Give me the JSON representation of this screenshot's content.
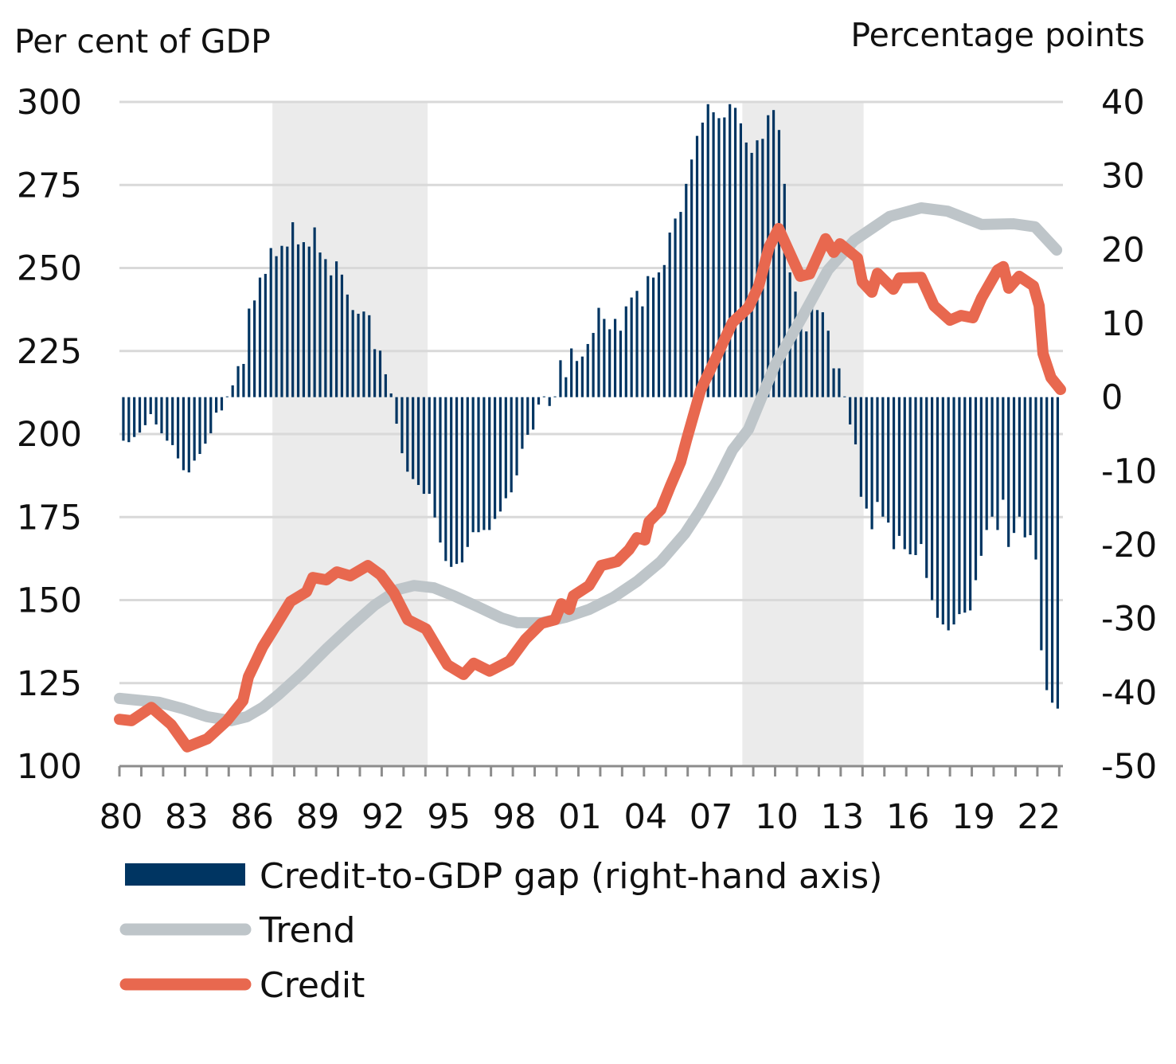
{
  "chart_data": {
    "type": "bar+line",
    "left_axis_label": "Per cent of GDP",
    "right_axis_label": "Percentage points",
    "left_ylim": [
      100,
      300
    ],
    "left_ticks": [
      "300",
      "275",
      "250",
      "225",
      "200",
      "175",
      "150",
      "125",
      "100"
    ],
    "right_ylim": [
      -50,
      40
    ],
    "right_ticks": [
      "40",
      "30",
      "20",
      "10",
      "0",
      "-10",
      "-20",
      "-30",
      "-40",
      "-50"
    ],
    "x_range": [
      1980,
      2023.2
    ],
    "x_tick_years": [
      1980,
      1983,
      1986,
      1989,
      1992,
      1995,
      1998,
      2001,
      2004,
      2007,
      2010,
      2013,
      2016,
      2019,
      2022
    ],
    "x_tick_labels": [
      "80",
      "83",
      "86",
      "89",
      "92",
      "95",
      "98",
      "01",
      "04",
      "07",
      "10",
      "13",
      "16",
      "19",
      "22"
    ],
    "grid": true,
    "shaded_periods": [
      [
        1987.0,
        1994.1
      ],
      [
        2008.5,
        2014.05
      ]
    ],
    "legend": {
      "position": "bottom",
      "items": [
        {
          "label": "Credit-to-GDP gap (right-hand axis)",
          "type": "bar",
          "color": "#003562"
        },
        {
          "label": "Trend",
          "type": "line",
          "color": "#BEC5C9"
        },
        {
          "label": "Credit",
          "type": "line",
          "color": "#E8684F"
        }
      ]
    },
    "series": [
      {
        "name": "Credit-to-GDP gap (right-hand axis)",
        "axis": "right",
        "frequency": "quarterly",
        "start": "1980Q1",
        "values": [
          -5.9,
          -6.1,
          -5.4,
          -4.8,
          -3.8,
          -2.3,
          -3.7,
          -4.9,
          -5.9,
          -6.5,
          -8.3,
          -9.9,
          -10.2,
          -8.6,
          -7.7,
          -6.3,
          -4.9,
          -2.1,
          -1.8,
          0.1,
          1.6,
          4.2,
          4.5,
          12.0,
          13.1,
          16.2,
          16.7,
          20.2,
          19.1,
          20.5,
          20.4,
          23.7,
          20.7,
          21.0,
          20.4,
          23.0,
          19.6,
          18.7,
          16.5,
          18.4,
          16.6,
          13.9,
          11.8,
          11.3,
          11.6,
          11.1,
          6.5,
          6.3,
          3.1,
          0.5,
          -3.6,
          -7.6,
          -10.1,
          -11.1,
          -11.9,
          -13.1,
          -13.1,
          -16.3,
          -19.7,
          -22.2,
          -23.0,
          -22.6,
          -22.4,
          -20.3,
          -18.3,
          -18.3,
          -18.0,
          -18.0,
          -16.5,
          -15.5,
          -13.7,
          -12.9,
          -10.6,
          -7.0,
          -5.1,
          -4.4,
          -1.0,
          0.1,
          -1.2,
          0.1,
          5.0,
          2.7,
          6.6,
          4.9,
          5.5,
          7.2,
          8.7,
          12.1,
          10.6,
          9.2,
          10.6,
          9.0,
          12.3,
          13.5,
          14.4,
          12.3,
          16.4,
          16.2,
          16.9,
          17.9,
          22.3,
          24.2,
          25.1,
          28.9,
          32.2,
          35.4,
          37.2,
          39.7,
          38.6,
          37.8,
          37.9,
          39.7,
          39.2,
          37.1,
          34.5,
          33.1,
          34.8,
          35.0,
          38.2,
          38.9,
          36.2,
          28.9,
          16.9,
          14.3,
          9.9,
          8.9,
          12.0,
          11.8,
          11.5,
          9.0,
          3.9,
          3.9,
          0.1,
          -3.7,
          -6.4,
          -13.5,
          -15.1,
          -17.9,
          -14.2,
          -16.2,
          -17.0,
          -20.6,
          -18.8,
          -20.6,
          -21.3,
          -21.4,
          -19.9,
          -24.5,
          -27.5,
          -29.9,
          -30.8,
          -31.6,
          -30.8,
          -29.4,
          -29.2,
          -28.9,
          -24.8,
          -21.5,
          -18.0,
          -16.2,
          -18.0,
          -13.9,
          -20.3,
          -18.4,
          -16.2,
          -19.0,
          -18.7,
          -22.0,
          -34.3,
          -39.7,
          -41.4,
          -42.2
        ],
        "color": "#003562"
      },
      {
        "name": "Trend",
        "axis": "left",
        "x": [
          1980.0,
          1981.82,
          1982.91,
          1984.01,
          1985.1,
          1985.83,
          1986.56,
          1987.29,
          1988.38,
          1989.47,
          1990.56,
          1991.66,
          1992.75,
          1993.48,
          1994.39,
          1995.3,
          1996.39,
          1997.49,
          1998.21,
          1999.31,
          2000.4,
          2001.49,
          2002.59,
          2003.68,
          2004.77,
          2005.87,
          2006.59,
          2007.32,
          2008.05,
          2008.78,
          2009.98,
          2011.22,
          2012.42,
          2013.62,
          2015.23,
          2016.68,
          2017.89,
          2019.45,
          2020.91,
          2021.89,
          2022.88
        ],
        "y": [
          120.4,
          119.2,
          117.3,
          114.9,
          113.7,
          114.9,
          117.7,
          121.6,
          128.1,
          135.3,
          142.0,
          148.4,
          153.2,
          154.4,
          153.7,
          151.3,
          148.0,
          144.6,
          143.2,
          143.2,
          144.8,
          147.2,
          150.8,
          155.6,
          161.6,
          170.0,
          177.2,
          185.6,
          195.2,
          201.4,
          220.6,
          235.0,
          249.4,
          258.3,
          265.5,
          268.1,
          267.1,
          263.1,
          263.3,
          262.4,
          255.4
        ],
        "color": "#BEC5C9"
      },
      {
        "name": "Credit",
        "axis": "left",
        "x": [
          1980.0,
          1980.55,
          1981.46,
          1982.37,
          1983.1,
          1984.01,
          1984.92,
          1985.65,
          1985.9,
          1986.56,
          1987.1,
          1987.83,
          1988.56,
          1988.85,
          1989.47,
          1989.95,
          1990.56,
          1991.37,
          1991.95,
          1992.57,
          1993.19,
          1994.03,
          1994.57,
          1995.01,
          1995.74,
          1996.21,
          1996.94,
          1997.85,
          1998.58,
          1999.31,
          1999.93,
          2000.22,
          2000.58,
          2000.77,
          2001.49,
          2002.04,
          2002.77,
          2003.32,
          2003.68,
          2004.04,
          2004.23,
          2004.77,
          2005.21,
          2005.68,
          2005.94,
          2006.59,
          2007.32,
          2008.05,
          2008.78,
          2009.25,
          2009.73,
          2010.16,
          2011.15,
          2011.58,
          2012.31,
          2012.68,
          2012.97,
          2013.77,
          2013.99,
          2014.43,
          2014.68,
          2015.41,
          2015.7,
          2016.68,
          2017.27,
          2018.0,
          2018.51,
          2019.05,
          2019.45,
          2020.18,
          2020.44,
          2020.69,
          2021.17,
          2021.82,
          2022.08,
          2022.26,
          2022.62,
          2023.06
        ],
        "y": [
          114.1,
          113.7,
          117.7,
          112.5,
          105.8,
          108.2,
          113.7,
          119.7,
          126.9,
          136.0,
          141.7,
          149.6,
          152.5,
          156.8,
          156.1,
          158.5,
          157.3,
          160.4,
          157.6,
          152.1,
          144.1,
          141.3,
          135.3,
          130.5,
          127.6,
          131.0,
          128.6,
          131.7,
          138.2,
          143.0,
          144.1,
          148.9,
          147.2,
          151.3,
          154.4,
          160.4,
          161.6,
          165.2,
          168.8,
          168.1,
          173.6,
          177.2,
          184.4,
          191.6,
          198.1,
          213.2,
          223.3,
          233.6,
          238.1,
          244.6,
          256.4,
          261.9,
          247.5,
          248.2,
          258.8,
          254.7,
          257.3,
          253.0,
          245.8,
          242.7,
          248.4,
          243.6,
          247.0,
          247.2,
          238.6,
          234.3,
          235.7,
          235.0,
          241.0,
          249.4,
          250.4,
          243.9,
          247.5,
          244.6,
          238.6,
          224.2,
          217.0,
          213.4
        ],
        "color": "#E8684F"
      }
    ]
  }
}
